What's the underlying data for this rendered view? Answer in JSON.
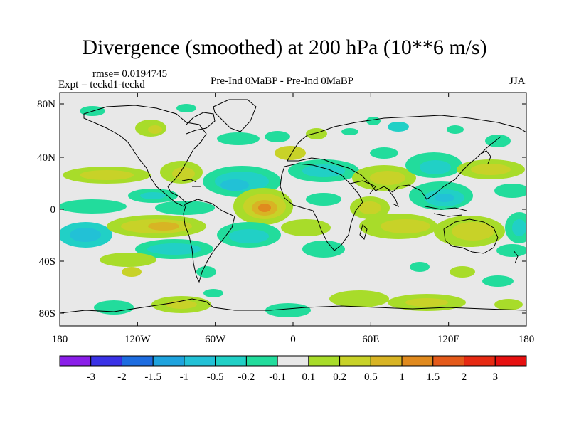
{
  "title": "Divergence (smoothed) at 200 hPa (10**6 m/s)",
  "rmse_label": "rmse= 0.0194745",
  "expt_label": "Expt = teckd1-teckd",
  "center_label": "Pre-Ind 0MaBP - Pre-Ind 0MaBP",
  "season_label": "JJA",
  "lat_ticks": [
    "80N",
    "40N",
    "0",
    "40S",
    "80S"
  ],
  "lon_ticks": [
    "180",
    "120W",
    "60W",
    "0",
    "60E",
    "120E",
    "180"
  ],
  "colorbar": {
    "labels": [
      "-3",
      "-2",
      "-1.5",
      "-1",
      "-0.5",
      "-0.2",
      "-0.1",
      "0.1",
      "0.2",
      "0.5",
      "1",
      "1.5",
      "2",
      "3"
    ],
    "colors": [
      "#8a1ee8",
      "#3a32e6",
      "#1d6ce0",
      "#1ea3de",
      "#22c1d6",
      "#21d0c6",
      "#22dc9c",
      "#e8e8e8",
      "#a8dc2a",
      "#c8d228",
      "#d8b424",
      "#e08a1e",
      "#e45a1a",
      "#e62a12",
      "#e61010"
    ]
  }
}
